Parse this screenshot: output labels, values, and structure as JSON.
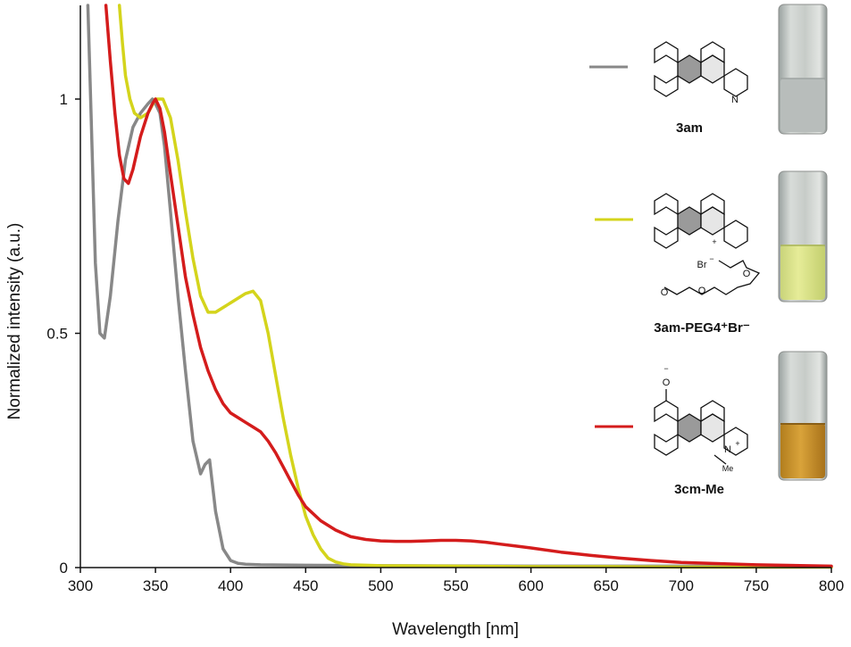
{
  "chart_data": {
    "type": "line",
    "xlabel": "Wavelength [nm]",
    "ylabel": "Normalized intensity (a.u.)",
    "xlim": [
      300,
      800
    ],
    "ylim": [
      0,
      1.2
    ],
    "x_ticks": [
      "300",
      "350",
      "400",
      "450",
      "500",
      "550",
      "600",
      "650",
      "700",
      "750",
      "800"
    ],
    "y_ticks": [
      {
        "value": 0,
        "label": "0"
      },
      {
        "value": 0.5,
        "label": "0.5"
      },
      {
        "value": 1,
        "label": "1"
      }
    ],
    "grid": false,
    "legend": "right",
    "series": [
      {
        "name": "3am",
        "color": "#888888",
        "x": [
          305,
          307,
          310,
          313,
          316,
          320,
          325,
          330,
          335,
          340,
          345,
          348,
          350,
          353,
          356,
          360,
          365,
          370,
          375,
          380,
          383,
          386,
          390,
          395,
          400,
          405,
          410,
          420,
          450,
          500,
          600,
          700,
          800
        ],
        "y": [
          1.2,
          0.98,
          0.65,
          0.5,
          0.49,
          0.58,
          0.74,
          0.87,
          0.94,
          0.97,
          0.99,
          1.0,
          0.99,
          0.97,
          0.9,
          0.76,
          0.58,
          0.42,
          0.27,
          0.2,
          0.22,
          0.23,
          0.12,
          0.04,
          0.015,
          0.009,
          0.007,
          0.006,
          0.005,
          0.004,
          0.003,
          0.003,
          0.002
        ]
      },
      {
        "name": "3am-PEG4⁺Br⁻",
        "color": "#d4d41c",
        "x": [
          326,
          328,
          330,
          333,
          336,
          340,
          345,
          350,
          355,
          360,
          365,
          370,
          375,
          380,
          385,
          390,
          395,
          400,
          405,
          410,
          415,
          420,
          425,
          430,
          435,
          440,
          445,
          450,
          455,
          460,
          465,
          470,
          475,
          480,
          500,
          550,
          600,
          650,
          700,
          800
        ],
        "y": [
          1.2,
          1.12,
          1.05,
          1.0,
          0.97,
          0.96,
          0.97,
          1.0,
          1.0,
          0.96,
          0.87,
          0.76,
          0.66,
          0.58,
          0.545,
          0.545,
          0.555,
          0.565,
          0.575,
          0.585,
          0.59,
          0.57,
          0.5,
          0.41,
          0.32,
          0.24,
          0.17,
          0.11,
          0.07,
          0.04,
          0.02,
          0.012,
          0.008,
          0.006,
          0.004,
          0.003,
          0.002,
          0.002,
          0.001,
          0.001
        ]
      },
      {
        "name": "3cm-Me",
        "color": "#d41c1c",
        "x": [
          317,
          320,
          323,
          326,
          329,
          332,
          335,
          340,
          345,
          348,
          350,
          353,
          356,
          360,
          365,
          370,
          375,
          380,
          385,
          390,
          395,
          400,
          405,
          410,
          415,
          420,
          425,
          430,
          435,
          440,
          445,
          450,
          460,
          470,
          480,
          490,
          500,
          510,
          520,
          530,
          540,
          550,
          560,
          570,
          580,
          590,
          600,
          620,
          640,
          660,
          680,
          700,
          750,
          800
        ],
        "y": [
          1.2,
          1.08,
          0.97,
          0.88,
          0.83,
          0.82,
          0.85,
          0.92,
          0.97,
          0.99,
          1.0,
          0.98,
          0.93,
          0.84,
          0.73,
          0.62,
          0.54,
          0.47,
          0.42,
          0.38,
          0.35,
          0.33,
          0.32,
          0.31,
          0.3,
          0.29,
          0.27,
          0.245,
          0.215,
          0.185,
          0.155,
          0.13,
          0.1,
          0.08,
          0.066,
          0.06,
          0.057,
          0.056,
          0.056,
          0.057,
          0.058,
          0.058,
          0.057,
          0.054,
          0.05,
          0.046,
          0.042,
          0.033,
          0.026,
          0.02,
          0.015,
          0.011,
          0.006,
          0.003
        ]
      }
    ],
    "annotations": {
      "compound_1": "3am",
      "compound_2": "3am-PEG4⁺Br⁻",
      "compound_3": "3cm-Me"
    },
    "atoms": {
      "n": "N",
      "plus": "+",
      "br": "Br",
      "minus": "−",
      "o": "O",
      "me": "Me"
    }
  }
}
